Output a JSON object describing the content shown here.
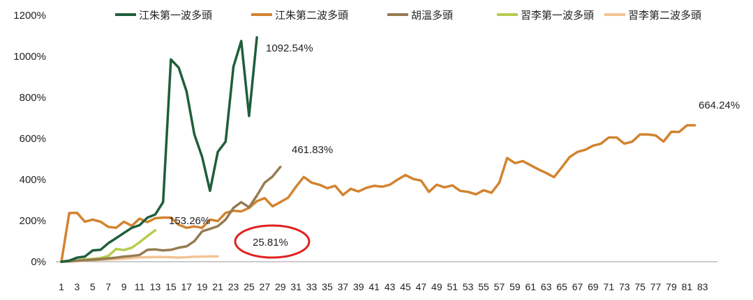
{
  "chart_data": {
    "type": "line",
    "ylim": [
      0,
      1200
    ],
    "y_ticks": [
      0,
      200,
      400,
      600,
      800,
      1000,
      1200
    ],
    "y_tick_labels": [
      "0%",
      "200%",
      "400%",
      "600%",
      "800%",
      "1000%",
      "1200%"
    ],
    "x_tick_labels": [
      "1",
      "3",
      "5",
      "7",
      "9",
      "11",
      "13",
      "15",
      "17",
      "19",
      "21",
      "23",
      "25",
      "27",
      "29",
      "31",
      "33",
      "35",
      "37",
      "39",
      "41",
      "43",
      "45",
      "47",
      "49",
      "51",
      "53",
      "55",
      "57",
      "59",
      "61",
      "63",
      "65",
      "67",
      "69",
      "71",
      "73",
      "75",
      "77",
      "79",
      "81",
      "83"
    ],
    "x_range": [
      1,
      84
    ],
    "grid": false,
    "legend_position": "top",
    "series": [
      {
        "name": "江朱第一波多頭",
        "color": "#1e5e3b",
        "values": [
          0,
          5,
          20,
          25,
          55,
          58,
          90,
          115,
          140,
          165,
          178,
          215,
          230,
          290,
          985,
          945,
          830,
          620,
          510,
          345,
          535,
          585,
          950,
          1075,
          710,
          1092.54
        ]
      },
      {
        "name": "江朱第二波多頭",
        "color": "#d2832f",
        "values": [
          0,
          237,
          238,
          195,
          205,
          195,
          170,
          165,
          195,
          175,
          210,
          193,
          212,
          215,
          215,
          180,
          165,
          172,
          165,
          205,
          198,
          238,
          248,
          245,
          262,
          295,
          310,
          270,
          290,
          312,
          365,
          413,
          385,
          375,
          358,
          370,
          325,
          355,
          342,
          360,
          370,
          365,
          375,
          400,
          422,
          403,
          395,
          340,
          375,
          362,
          372,
          345,
          340,
          328,
          348,
          336,
          385,
          505,
          480,
          490,
          470,
          450,
          432,
          412,
          460,
          510,
          535,
          545,
          565,
          575,
          605,
          605,
          575,
          585,
          620,
          620,
          615,
          585,
          633,
          632,
          664.24,
          664.24
        ]
      },
      {
        "name": "胡溫多頭",
        "color": "#957b52",
        "values": [
          0,
          2,
          5,
          7,
          10,
          13,
          16,
          20,
          25,
          28,
          33,
          58,
          60,
          55,
          58,
          68,
          75,
          100,
          148,
          160,
          173,
          205,
          262,
          290,
          265,
          322,
          385,
          415,
          461.83
        ]
      },
      {
        "name": "習李第一波多頭",
        "color": "#b7cb4e",
        "values": [
          0,
          3,
          6,
          12,
          14,
          18,
          28,
          62,
          57,
          68,
          95,
          125,
          153.26
        ]
      },
      {
        "name": "習李第二波多頭",
        "color": "#f2c394",
        "values": [
          0,
          1,
          3,
          5,
          7,
          9,
          11,
          13,
          15,
          18,
          21,
          22,
          23,
          23,
          22,
          20,
          22,
          24,
          25,
          25.81,
          25.81
        ]
      }
    ],
    "annotations": [
      "1092.54%",
      "664.24%",
      "461.83%",
      "153.26%",
      "25.81%"
    ]
  }
}
